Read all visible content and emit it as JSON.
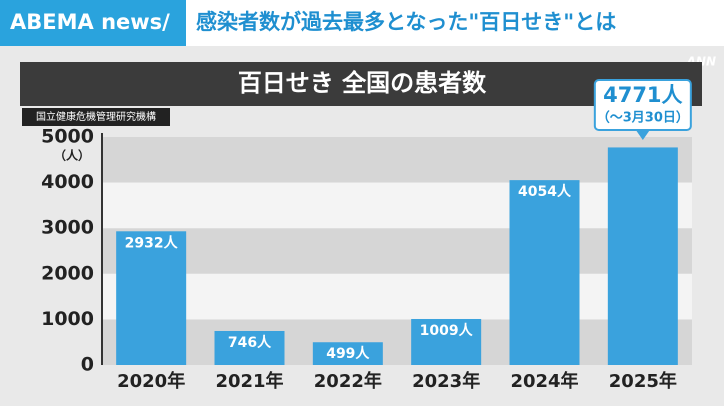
{
  "header": {
    "brand": "ABEMA news/",
    "headline": "感染者数が過去最多となった\"百日せき\"とは",
    "logo": "ANN"
  },
  "chart_data": {
    "type": "bar",
    "title": "百日せき 全国の患者数",
    "source": "国立健康危機管理研究機構",
    "y_unit": "（人）",
    "categories": [
      "2020年",
      "2021年",
      "2022年",
      "2023年",
      "2024年",
      "2025年"
    ],
    "values": [
      2932,
      746,
      499,
      1009,
      4054,
      4771
    ],
    "value_labels": [
      "2932人",
      "746人",
      "499人",
      "1009人",
      "4054人",
      "4771人"
    ],
    "annotation": "（〜3月30日）",
    "color": "#3aa2dd",
    "ylim": [
      0,
      5000
    ],
    "yticks": [
      0,
      1000,
      2000,
      3000,
      4000,
      5000
    ],
    "grid": "bands"
  }
}
